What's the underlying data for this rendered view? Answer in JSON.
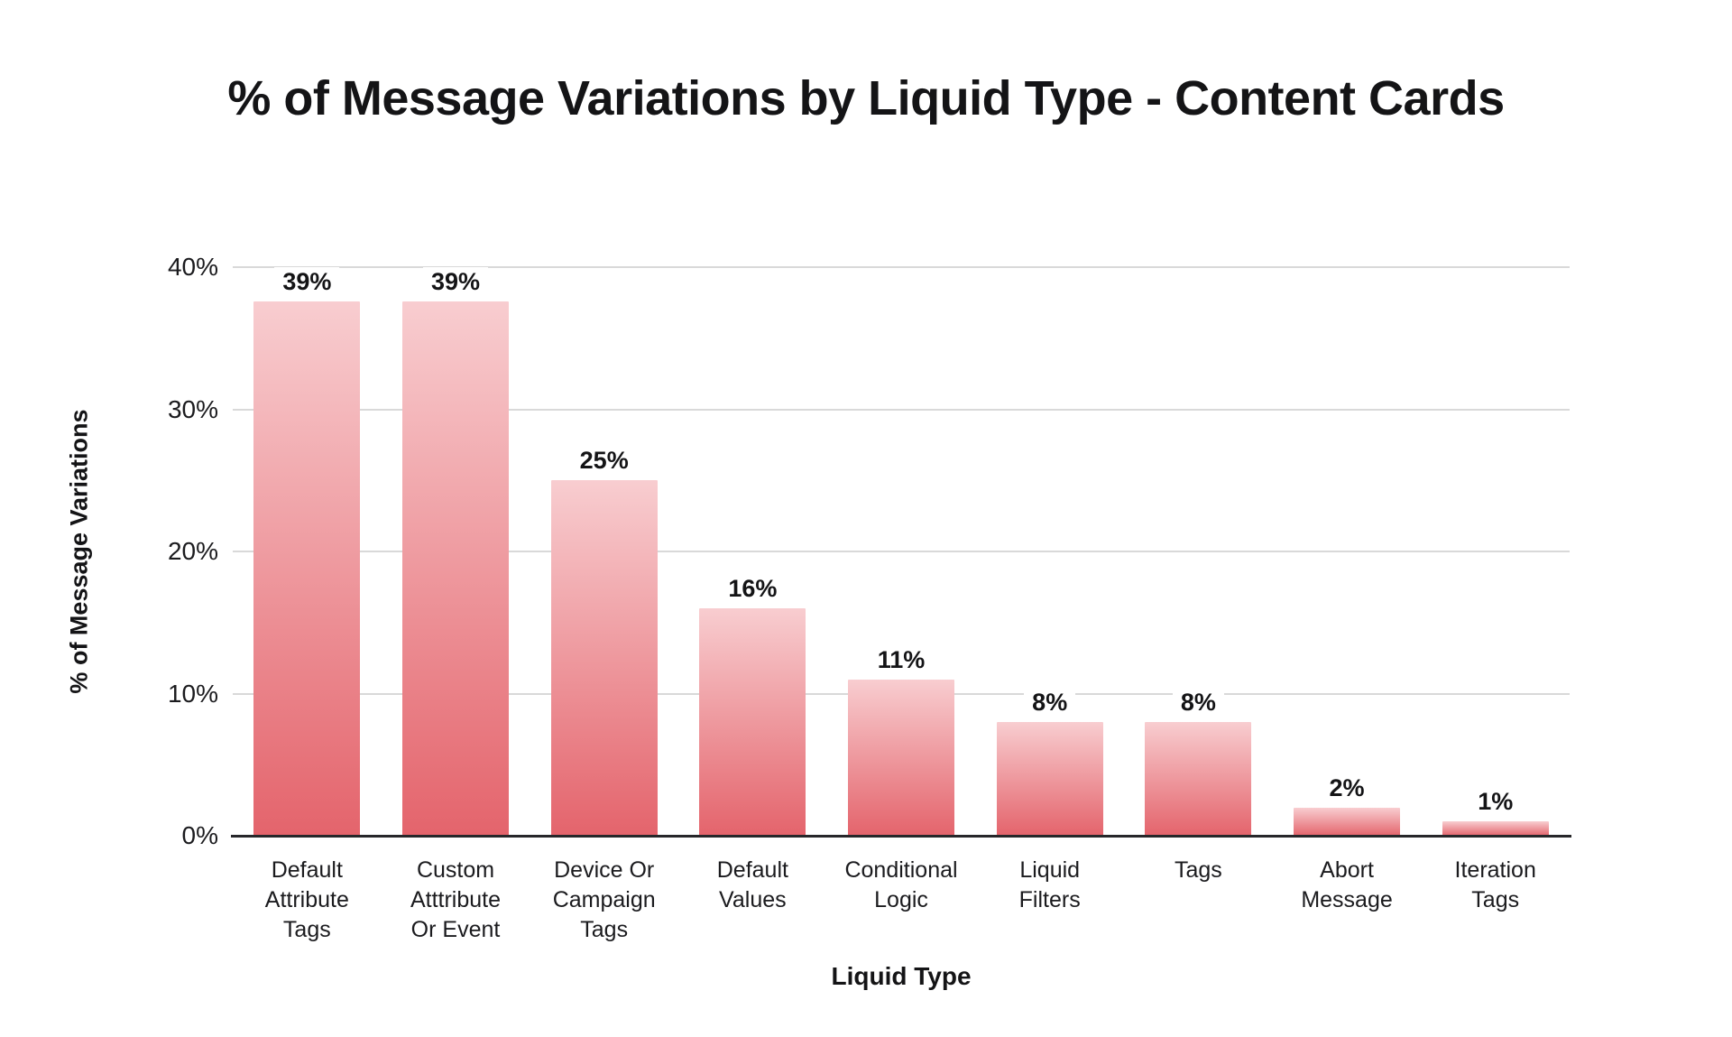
{
  "title": "% of Message Variations by Liquid Type - Content Cards",
  "y_axis": {
    "title": "% of Message Variations",
    "ticks_top_to_bottom": [
      "40%",
      "30%",
      "20%",
      "10%",
      "0%"
    ],
    "max": 40
  },
  "x_axis": {
    "title": "Liquid Type"
  },
  "colors": {
    "bar_gradient_top": "#f8cdd0",
    "bar_gradient_bottom": "#e4646c",
    "gridline": "#d9d9d9",
    "baseline": "#27272a",
    "text": "#1b1b1e",
    "background": "#ffffff"
  },
  "chart_data": {
    "type": "bar",
    "title": "% of Message Variations by Liquid Type - Content Cards",
    "xlabel": "Liquid Type",
    "ylabel": "% of Message Variations",
    "ylim": [
      0,
      40
    ],
    "grid": true,
    "legend": false,
    "categories": [
      "Default Attribute Tags",
      "Custom Atttribute Or Event",
      "Device Or Campaign Tags",
      "Default Values",
      "Conditional Logic",
      "Liquid Filters",
      "Tags",
      "Abort Message",
      "Iteration Tags"
    ],
    "categories_wrapped": [
      [
        "Default",
        "Attribute",
        "Tags"
      ],
      [
        "Custom",
        "Atttribute",
        "Or Event"
      ],
      [
        "Device Or",
        "Campaign",
        "Tags"
      ],
      [
        "Default",
        "Values"
      ],
      [
        "Conditional",
        "Logic"
      ],
      [
        "Liquid",
        "Filters"
      ],
      [
        "Tags"
      ],
      [
        "Abort",
        "Message"
      ],
      [
        "Iteration",
        "Tags"
      ]
    ],
    "values": [
      39,
      39,
      25,
      16,
      11,
      8,
      8,
      2,
      1
    ],
    "value_labels": [
      "39%",
      "39%",
      "25%",
      "16%",
      "11%",
      "8%",
      "8%",
      "2%",
      "1%"
    ]
  }
}
